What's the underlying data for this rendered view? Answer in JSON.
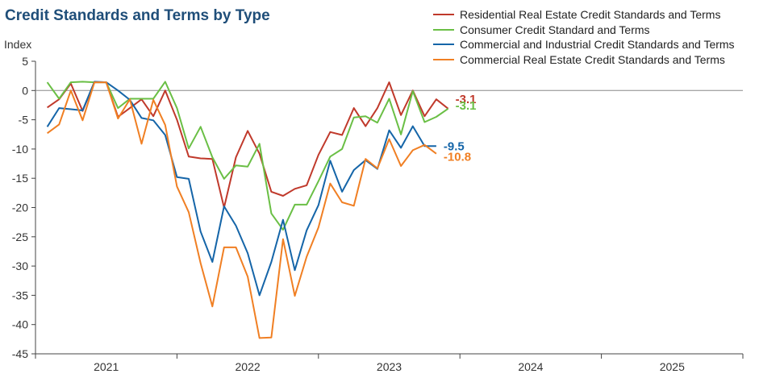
{
  "chart_data": {
    "type": "line",
    "title": "Credit Standards and Terms by Type",
    "ylabel": "Index",
    "xlabel": "",
    "ylim": [
      -45,
      5
    ],
    "yticks": [
      5,
      0,
      -5,
      -10,
      -15,
      -20,
      -25,
      -30,
      -35,
      -40,
      -45
    ],
    "xlim": [
      2020.5,
      2025.5
    ],
    "xticks": [
      {
        "value": 2021,
        "label": "2021"
      },
      {
        "value": 2022,
        "label": "2022"
      },
      {
        "value": 2023,
        "label": "2023"
      },
      {
        "value": 2024,
        "label": "2024"
      },
      {
        "value": 2025,
        "label": "2025"
      }
    ],
    "x": [
      2020.583,
      2020.667,
      2020.75,
      2020.833,
      2020.917,
      2021.0,
      2021.083,
      2021.167,
      2021.25,
      2021.333,
      2021.417,
      2021.5,
      2021.583,
      2021.667,
      2021.75,
      2021.833,
      2021.917,
      2022.0,
      2022.083,
      2022.167,
      2022.25,
      2022.333,
      2022.417,
      2022.5,
      2022.583,
      2022.667,
      2022.75,
      2022.833,
      2022.917,
      2023.0,
      2023.083,
      2023.167,
      2023.25,
      2023.333,
      2023.417,
      2023.5,
      2023.583,
      2023.667,
      2023.75,
      2023.833,
      2023.917,
      2024.0,
      2024.083,
      2024.167,
      2024.25,
      2024.333,
      2024.417,
      2024.5,
      2024.583
    ],
    "series": [
      {
        "name": "Residential Real Estate Credit Standards and Terms",
        "color": "#c0392b",
        "end_label": "-3.1",
        "values": [
          -2.9,
          -1.5,
          1.2,
          -3.5,
          1.4,
          1.4,
          -4.5,
          -3.0,
          -1.5,
          -4.4,
          0.0,
          -5.0,
          -11.3,
          -11.6,
          -11.7,
          -20.0,
          -11.4,
          -6.9,
          -10.8,
          -17.3,
          -18.0,
          -16.8,
          -16.2,
          -11.0,
          -7.1,
          -7.6,
          -3.0,
          -6.1,
          -3.0,
          1.4,
          -4.2,
          0.0,
          -4.4,
          -1.5,
          -3.1,
          null,
          null,
          null,
          null,
          null,
          null,
          null,
          null,
          null,
          null,
          null,
          null,
          null,
          null
        ]
      },
      {
        "name": "Consumer Credit Standard and Terms",
        "color": "#6abf45",
        "end_label": "-3.1",
        "values": [
          1.4,
          -1.4,
          1.4,
          1.5,
          1.4,
          1.4,
          -3.0,
          -1.4,
          -1.4,
          -1.4,
          1.5,
          -3.0,
          -9.9,
          -6.2,
          -11.4,
          -15.1,
          -12.8,
          -13.0,
          -9.1,
          -21.0,
          -23.8,
          -19.5,
          -19.5,
          -15.5,
          -11.3,
          -10.0,
          -4.6,
          -4.4,
          -5.5,
          -1.4,
          -7.5,
          -0.1,
          -5.4,
          -4.5,
          -3.1,
          null,
          null,
          null,
          null,
          null,
          null,
          null,
          null,
          null,
          null,
          null,
          null,
          null,
          null
        ]
      },
      {
        "name": "Commercial and Industrial Credit Standards and Terms",
        "color": "#1565a8",
        "end_label": "-9.5",
        "values": [
          -6.2,
          -3.0,
          -3.2,
          -3.4,
          1.5,
          1.4,
          0.0,
          -1.6,
          -4.7,
          -5.1,
          -7.6,
          -14.8,
          -15.1,
          -24.1,
          -29.3,
          -19.8,
          -23.1,
          -27.8,
          -35.0,
          -29.3,
          -22.1,
          -30.7,
          -23.9,
          -19.6,
          -12.0,
          -17.3,
          -13.6,
          -11.9,
          -13.4,
          -6.8,
          -9.8,
          -6.1,
          -9.5,
          -9.5,
          null,
          null,
          null,
          null,
          null,
          null,
          null,
          null,
          null,
          null,
          null,
          null,
          null,
          null,
          null
        ]
      },
      {
        "name": "Commercial Real Estate Credit Standards and Terms",
        "color": "#f07f23",
        "end_label": "-10.8",
        "values": [
          -7.3,
          -5.8,
          0.0,
          -5.1,
          1.4,
          1.4,
          -4.8,
          -1.5,
          -9.1,
          -1.6,
          -5.9,
          -16.4,
          -20.8,
          -29.5,
          -36.9,
          -26.8,
          -26.8,
          -31.8,
          -42.3,
          -42.2,
          -25.4,
          -35.1,
          -28.4,
          -23.4,
          -15.9,
          -19.1,
          -19.7,
          -11.7,
          -13.3,
          -8.3,
          -12.9,
          -10.2,
          -9.3,
          -10.8,
          null,
          null,
          null,
          null,
          null,
          null,
          null,
          null,
          null,
          null,
          null,
          null,
          null,
          null,
          null
        ]
      }
    ]
  }
}
